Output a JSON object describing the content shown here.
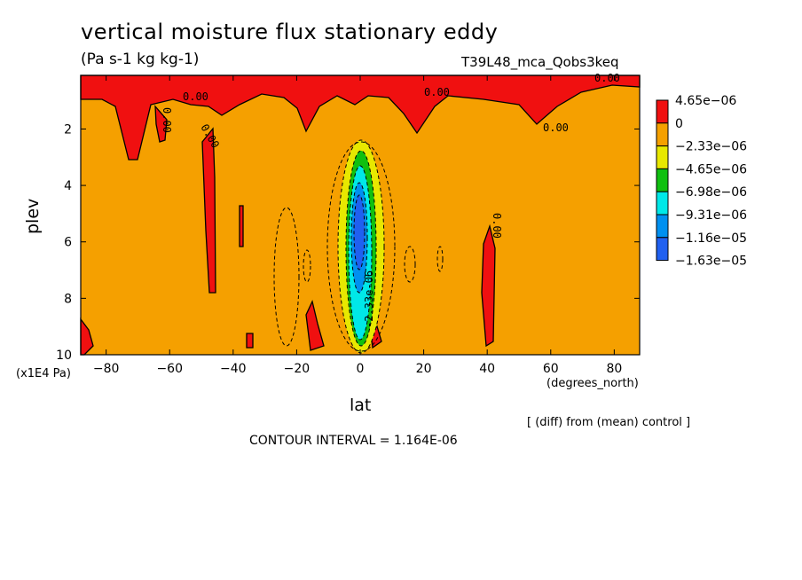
{
  "header": {
    "title": "vertical moisture flux stationary eddy",
    "units": "(Pa s-1 kg kg-1)",
    "run_name": "T39L48_mca_Qobs3keq"
  },
  "footer": {
    "diff_note": "[ (diff) from (mean) control ]",
    "contour_interval": "CONTOUR INTERVAL = 1.164E-06"
  },
  "colors": {
    "positive": "#f01010",
    "zero_band": "#f5a000",
    "neg_1": "#e8e800",
    "neg_2": "#10c010",
    "neg_3": "#00e8e8",
    "neg_4": "#0090f0",
    "neg_5": "#2060f0"
  },
  "chart_data": {
    "type": "heatmap",
    "subtype": "filled contour",
    "title": "vertical moisture flux stationary eddy",
    "xlabel": "lat",
    "xunits": "(degrees_north)",
    "ylabel": "plev",
    "yunits": "(x1E4 Pa)",
    "xlim": [
      -88,
      88
    ],
    "ylim": [
      10,
      0.1
    ],
    "y_inverted": true,
    "xticks": [
      -80,
      -60,
      -40,
      -20,
      0,
      20,
      40,
      60,
      80
    ],
    "yticks": [
      2,
      4,
      6,
      8,
      10
    ],
    "legend": {
      "placement": "right",
      "levels": [
        "4.65e-06",
        "0",
        "-2.33e-06",
        "-4.65e-06",
        "-6.98e-06",
        "-9.31e-06",
        "-1.16e-05",
        "-1.63e-05"
      ]
    },
    "contour_labels": [
      "0.00",
      "0.00",
      "0.00",
      "0.00",
      "0.00",
      "0.00",
      "0.00",
      "-2.33e-06"
    ],
    "features": [
      {
        "kind": "minimum",
        "lat": 0,
        "plev_range": [
          3.2,
          9.4
        ],
        "min_value": -1.63e-05
      },
      {
        "kind": "positive",
        "lat_range": [
          -88,
          88
        ],
        "plev_range": [
          0.1,
          1.0
        ]
      }
    ]
  }
}
